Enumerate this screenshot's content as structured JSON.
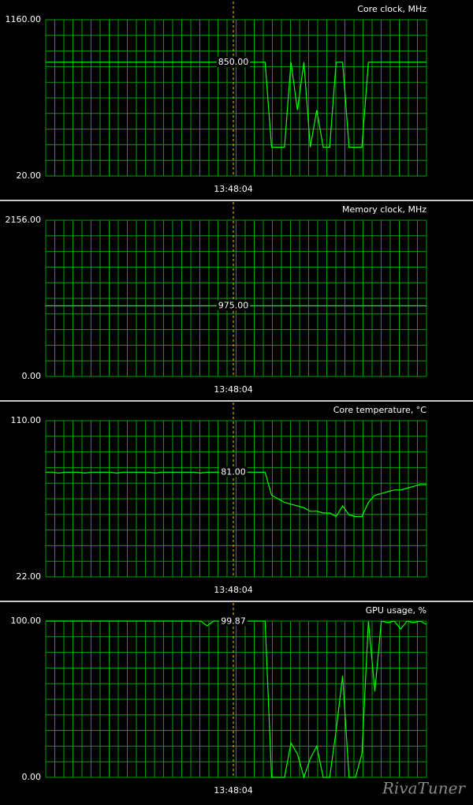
{
  "chart_data": [
    {
      "type": "line",
      "title": "Core clock, MHz",
      "color": "#00ff00",
      "grid": true,
      "ylim": [
        20,
        1160
      ],
      "yticks": [
        {
          "value": 20,
          "label": "20.00"
        },
        {
          "value": 1160,
          "label": "1160.00"
        }
      ],
      "cursor_time": "13:48:04",
      "cursor_value": {
        "value": 850,
        "label": "850.00"
      },
      "values": [
        850,
        850,
        850,
        850,
        850,
        850,
        850,
        850,
        850,
        850,
        850,
        850,
        850,
        850,
        850,
        850,
        850,
        850,
        850,
        850,
        850,
        850,
        850,
        850,
        850,
        850,
        850,
        850,
        850,
        850,
        850,
        850,
        850,
        850,
        850,
        230,
        230,
        230,
        850,
        500,
        850,
        230,
        500,
        230,
        230,
        850,
        850,
        230,
        230,
        230,
        850,
        850,
        850,
        850,
        850,
        850,
        850,
        850,
        850,
        850
      ]
    },
    {
      "type": "line",
      "title": "Memory clock, MHz",
      "color": "#00ff00",
      "grid": true,
      "ylim": [
        0,
        2156
      ],
      "yticks": [
        {
          "value": 0,
          "label": "0.00"
        },
        {
          "value": 2156,
          "label": "2156.00"
        }
      ],
      "cursor_time": "13:48:04",
      "cursor_value": {
        "value": 975,
        "label": "975.00"
      },
      "values": [
        975,
        975,
        975,
        975,
        975,
        975,
        975,
        975,
        975,
        975,
        975,
        975,
        975,
        975,
        975,
        975,
        975,
        975,
        975,
        975,
        975,
        975,
        975,
        975,
        975,
        975,
        975,
        975,
        975,
        975,
        975,
        975,
        975,
        975,
        975,
        975,
        975,
        975,
        975,
        975,
        975,
        975,
        975,
        975,
        975,
        975,
        975,
        975,
        975,
        975,
        975,
        975,
        975,
        975,
        975,
        975,
        975,
        975,
        975,
        975
      ]
    },
    {
      "type": "line",
      "title": "Core temperature, °C",
      "color": "#00ff00",
      "grid": true,
      "ylim": [
        22,
        110
      ],
      "yticks": [
        {
          "value": 22,
          "label": "22.00"
        },
        {
          "value": 110,
          "label": "110.00"
        }
      ],
      "cursor_time": "13:48:04",
      "cursor_value": {
        "value": 81,
        "label": "81.00"
      },
      "values": [
        81,
        81,
        80.5,
        81,
        81,
        81,
        80.5,
        81,
        81,
        81,
        81,
        80.5,
        81,
        81,
        81,
        81,
        81,
        80.5,
        81,
        81,
        81,
        81,
        81,
        81,
        80.5,
        81,
        81,
        81,
        81,
        81,
        81,
        81,
        81,
        81,
        81,
        68,
        66,
        64,
        63,
        62,
        61,
        59,
        59,
        58,
        58,
        56,
        62,
        57,
        56,
        56,
        64,
        68,
        69,
        70,
        71,
        71,
        72,
        73,
        74,
        74
      ]
    },
    {
      "type": "line",
      "title": "GPU usage, %",
      "color": "#00ff00",
      "grid": true,
      "ylim": [
        0,
        100
      ],
      "yticks": [
        {
          "value": 0,
          "label": "0.00"
        },
        {
          "value": 100,
          "label": "100.00"
        }
      ],
      "cursor_time": "13:48:04",
      "cursor_value": {
        "value": 99.87,
        "label": "99.87"
      },
      "values": [
        100,
        100,
        100,
        100,
        100,
        100,
        100,
        100,
        100,
        100,
        100,
        100,
        100,
        100,
        100,
        100,
        100,
        100,
        100,
        100,
        100,
        100,
        100,
        100,
        100,
        97,
        100,
        100,
        100,
        100,
        100,
        100,
        100,
        100,
        100,
        0,
        0,
        0,
        22,
        15,
        0,
        12,
        20,
        0,
        0,
        30,
        65,
        0,
        0,
        15,
        100,
        55,
        100,
        99,
        100,
        95,
        100,
        99,
        100,
        98
      ]
    }
  ],
  "watermark": "RivaTuner"
}
